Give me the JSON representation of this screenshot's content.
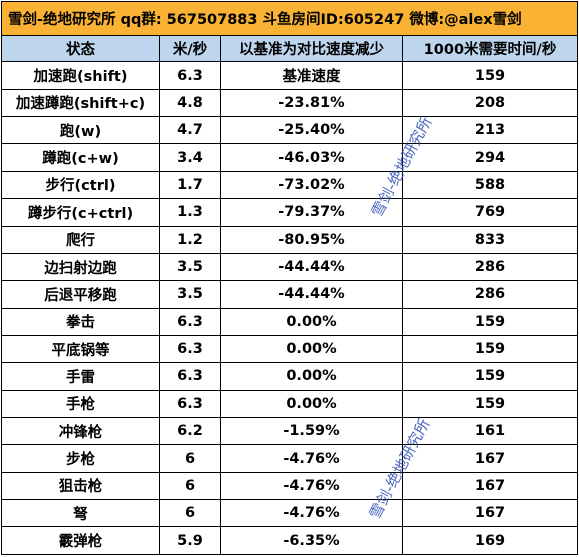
{
  "title": "雪剑-绝地研究所 qq群: 567507883 斗鱼房间ID:605247 微博:@alex雪剑",
  "headers": [
    "状态",
    "米/秒",
    "以基准为对比速度减少",
    "1000米需要时间/秒"
  ],
  "rows": [
    [
      "加速跑(shift)",
      "6.3",
      "基准速度",
      "159"
    ],
    [
      "加速蹲跑(shift+c)",
      "4.8",
      "-23.81%",
      "208"
    ],
    [
      "跑(w)",
      "4.7",
      "-25.40%",
      "213"
    ],
    [
      "蹲跑(c+w)",
      "3.4",
      "-46.03%",
      "294"
    ],
    [
      "步行(ctrl)",
      "1.7",
      "-73.02%",
      "588"
    ],
    [
      "蹲步行(c+ctrl)",
      "1.3",
      "-79.37%",
      "769"
    ],
    [
      "爬行",
      "1.2",
      "-80.95%",
      "833"
    ],
    [
      "边扫射边跑",
      "3.5",
      "-44.44%",
      "286"
    ],
    [
      "后退平移跑",
      "3.5",
      "-44.44%",
      "286"
    ],
    [
      "拳击",
      "6.3",
      "0.00%",
      "159"
    ],
    [
      "平底锅等",
      "6.3",
      "0.00%",
      "159"
    ],
    [
      "手雷",
      "6.3",
      "0.00%",
      "159"
    ],
    [
      "手枪",
      "6.3",
      "0.00%",
      "159"
    ],
    [
      "冲锋枪",
      "6.2",
      "-1.59%",
      "161"
    ],
    [
      "步枪",
      "6",
      "-4.76%",
      "167"
    ],
    [
      "狙击枪",
      "6",
      "-4.76%",
      "167"
    ],
    [
      "弩",
      "6",
      "-4.76%",
      "167"
    ],
    [
      "霰弹枪",
      "5.9",
      "-6.35%",
      "169"
    ]
  ],
  "watermarks": [
    "雪剑-绝地研究所",
    "雪剑-绝地研究所"
  ],
  "colors": {
    "title_bg": "#f9b233",
    "header_bg": "#bdd6ee",
    "watermark": "#2b4fb3"
  }
}
